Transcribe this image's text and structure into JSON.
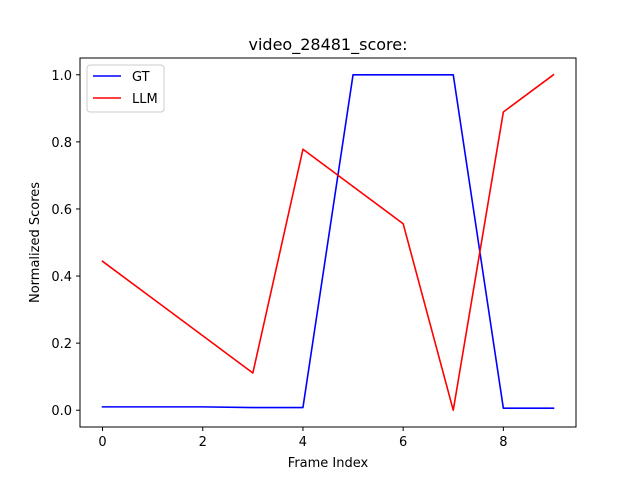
{
  "chart_data": {
    "type": "line",
    "title": "video_28481_score:",
    "xlabel": "Frame Index",
    "ylabel": "Normalized Scores",
    "xlim": [
      -0.45,
      9.45
    ],
    "ylim": [
      -0.05,
      1.05
    ],
    "x_ticks": [
      0,
      2,
      4,
      6,
      8
    ],
    "x_tick_labels": [
      "0",
      "2",
      "4",
      "6",
      "8"
    ],
    "y_ticks": [
      0.0,
      0.2,
      0.4,
      0.6,
      0.8,
      1.0
    ],
    "y_tick_labels": [
      "0.0",
      "0.2",
      "0.4",
      "0.6",
      "0.8",
      "1.0"
    ],
    "grid": false,
    "legend_position": "top-left",
    "x": [
      0,
      1,
      2,
      3,
      4,
      5,
      6,
      7,
      8,
      9
    ],
    "series": [
      {
        "name": "GT",
        "color": "#0000ff",
        "values": [
          0.01,
          0.01,
          0.01,
          0.008,
          0.008,
          1.0,
          1.0,
          1.0,
          0.006,
          0.006
        ]
      },
      {
        "name": "LLM",
        "color": "#ff0000",
        "values": [
          0.444,
          0.333,
          0.222,
          0.111,
          0.778,
          0.667,
          0.556,
          0.0,
          0.889,
          1.0
        ]
      }
    ]
  }
}
